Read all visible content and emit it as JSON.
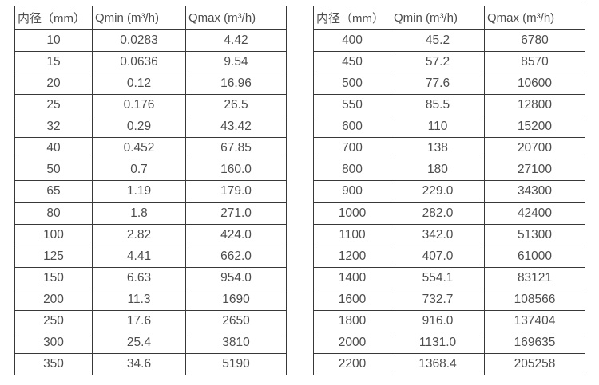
{
  "chart_data": [
    {
      "type": "table",
      "position": "left",
      "headers": [
        "内径（mm）",
        "Qmin (m³/h)",
        "Qmax (m³/h)"
      ],
      "rows": [
        [
          "10",
          "0.0283",
          "4.42"
        ],
        [
          "15",
          "0.0636",
          "9.54"
        ],
        [
          "20",
          "0.12",
          "16.96"
        ],
        [
          "25",
          "0.176",
          "26.5"
        ],
        [
          "32",
          "0.29",
          "43.42"
        ],
        [
          "40",
          "0.452",
          "67.85"
        ],
        [
          "50",
          "0.7",
          "160.0"
        ],
        [
          "65",
          "1.19",
          "179.0"
        ],
        [
          "80",
          "1.8",
          "271.0"
        ],
        [
          "100",
          "2.82",
          "424.0"
        ],
        [
          "125",
          "4.41",
          "662.0"
        ],
        [
          "150",
          "6.63",
          "954.0"
        ],
        [
          "200",
          "11.3",
          "1690"
        ],
        [
          "250",
          "17.6",
          "2650"
        ],
        [
          "300",
          "25.4",
          "3810"
        ],
        [
          "350",
          "34.6",
          "5190"
        ]
      ]
    },
    {
      "type": "table",
      "position": "right",
      "headers": [
        "内径（mm）",
        "Qmin (m³/h)",
        "Qmax (m³/h)"
      ],
      "rows": [
        [
          "400",
          "45.2",
          "6780"
        ],
        [
          "450",
          "57.2",
          "8570"
        ],
        [
          "500",
          "77.6",
          "10600"
        ],
        [
          "550",
          "85.5",
          "12800"
        ],
        [
          "600",
          "110",
          "15200"
        ],
        [
          "700",
          "138",
          "20700"
        ],
        [
          "800",
          "180",
          "27100"
        ],
        [
          "900",
          "229.0",
          "34300"
        ],
        [
          "1000",
          "282.0",
          "42400"
        ],
        [
          "1100",
          "342.0",
          "51300"
        ],
        [
          "1200",
          "407.0",
          "61000"
        ],
        [
          "1400",
          "554.1",
          "83121"
        ],
        [
          "1600",
          "732.7",
          "108566"
        ],
        [
          "1800",
          "916.0",
          "137404"
        ],
        [
          "2000",
          "1131.0",
          "169635"
        ],
        [
          "2200",
          "1368.4",
          "205258"
        ]
      ]
    }
  ],
  "colors": {
    "border": "#383838",
    "text": "#4d4d4d",
    "background": "#ffffff"
  }
}
